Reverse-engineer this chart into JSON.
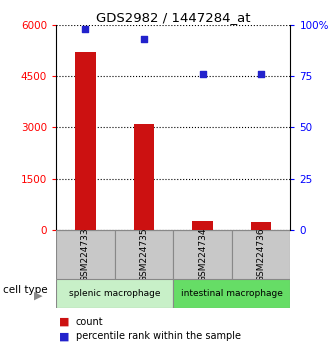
{
  "title": "GDS2982 / 1447284_at",
  "samples": [
    "GSM224733",
    "GSM224735",
    "GSM224734",
    "GSM224736"
  ],
  "counts": [
    5200,
    3100,
    250,
    220
  ],
  "percentile_ranks": [
    98,
    93,
    76,
    76
  ],
  "left_ylim": [
    0,
    6000
  ],
  "right_ylim": [
    0,
    100
  ],
  "left_yticks": [
    0,
    1500,
    3000,
    4500,
    6000
  ],
  "right_yticks": [
    0,
    25,
    50,
    75,
    100
  ],
  "right_yticklabels": [
    "0",
    "25",
    "50",
    "75",
    "100%"
  ],
  "bar_color": "#cc1111",
  "dot_color": "#2222cc",
  "cell_types": [
    {
      "label": "splenic macrophage",
      "samples": [
        0,
        1
      ],
      "color": "#c8f0c8"
    },
    {
      "label": "intestinal macrophage",
      "samples": [
        2,
        3
      ],
      "color": "#66dd66"
    }
  ],
  "sample_box_color": "#c8c8c8",
  "cell_type_label": "cell type",
  "legend_count_label": "count",
  "legend_pct_label": "percentile rank within the sample",
  "bar_width": 0.35
}
